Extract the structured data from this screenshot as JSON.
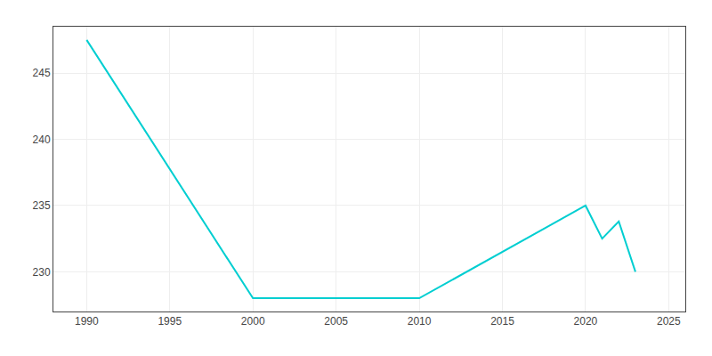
{
  "chart_data": {
    "type": "line",
    "x": [
      1990,
      2000,
      2010,
      2020,
      2021,
      2022,
      2023
    ],
    "values": [
      247.5,
      228.0,
      228.0,
      235.0,
      232.5,
      233.8,
      230.0
    ],
    "color": "#00CED1",
    "xlim": [
      1988,
      2026
    ],
    "ylim": [
      227,
      248.5
    ],
    "xticks": [
      1990,
      1995,
      2000,
      2005,
      2010,
      2015,
      2020,
      2025
    ],
    "yticks": [
      230,
      235,
      240,
      245
    ],
    "grid": true
  }
}
